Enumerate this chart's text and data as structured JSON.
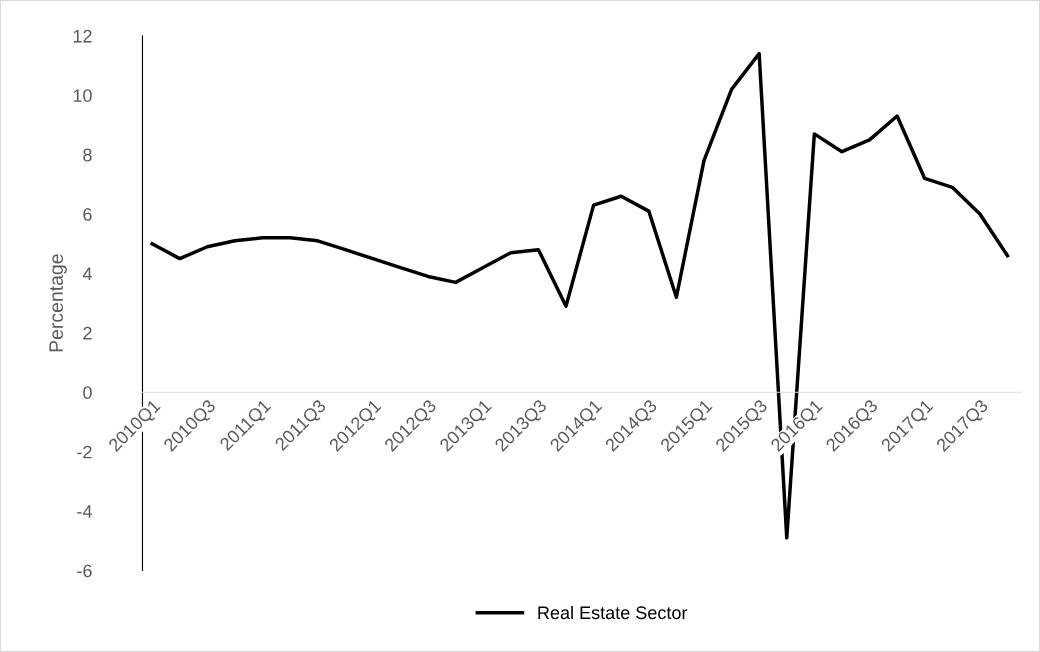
{
  "chart_data": {
    "type": "line",
    "ylabel": "Percentage",
    "categories": [
      "2010Q1",
      null,
      "2010Q3",
      null,
      "2011Q1",
      null,
      "2011Q3",
      null,
      "2012Q1",
      null,
      "2012Q3",
      null,
      "2013Q1",
      null,
      "2013Q3",
      null,
      "2014Q1",
      null,
      "2014Q3",
      null,
      "2015Q1",
      null,
      "2015Q3",
      null,
      "2016Q1",
      null,
      "2016Q3",
      null,
      "2017Q1",
      null,
      "2017Q3",
      null
    ],
    "series": [
      {
        "name": "Real Estate Sector",
        "color": "#000000",
        "values": [
          5.0,
          4.5,
          4.9,
          5.1,
          5.2,
          5.2,
          5.1,
          4.8,
          4.5,
          4.2,
          3.9,
          3.7,
          4.2,
          4.7,
          4.8,
          2.9,
          6.3,
          6.6,
          6.1,
          3.2,
          7.8,
          10.2,
          11.4,
          -4.9,
          8.7,
          8.1,
          8.5,
          9.3,
          7.2,
          6.9,
          6.0,
          4.6
        ]
      }
    ],
    "ylim": [
      -6,
      12
    ],
    "yticks": [
      -6,
      -4,
      -2,
      0,
      2,
      4,
      6,
      8,
      10,
      12
    ],
    "grid": false,
    "legend": "bottom",
    "marker": "none",
    "line_style": "solid"
  }
}
